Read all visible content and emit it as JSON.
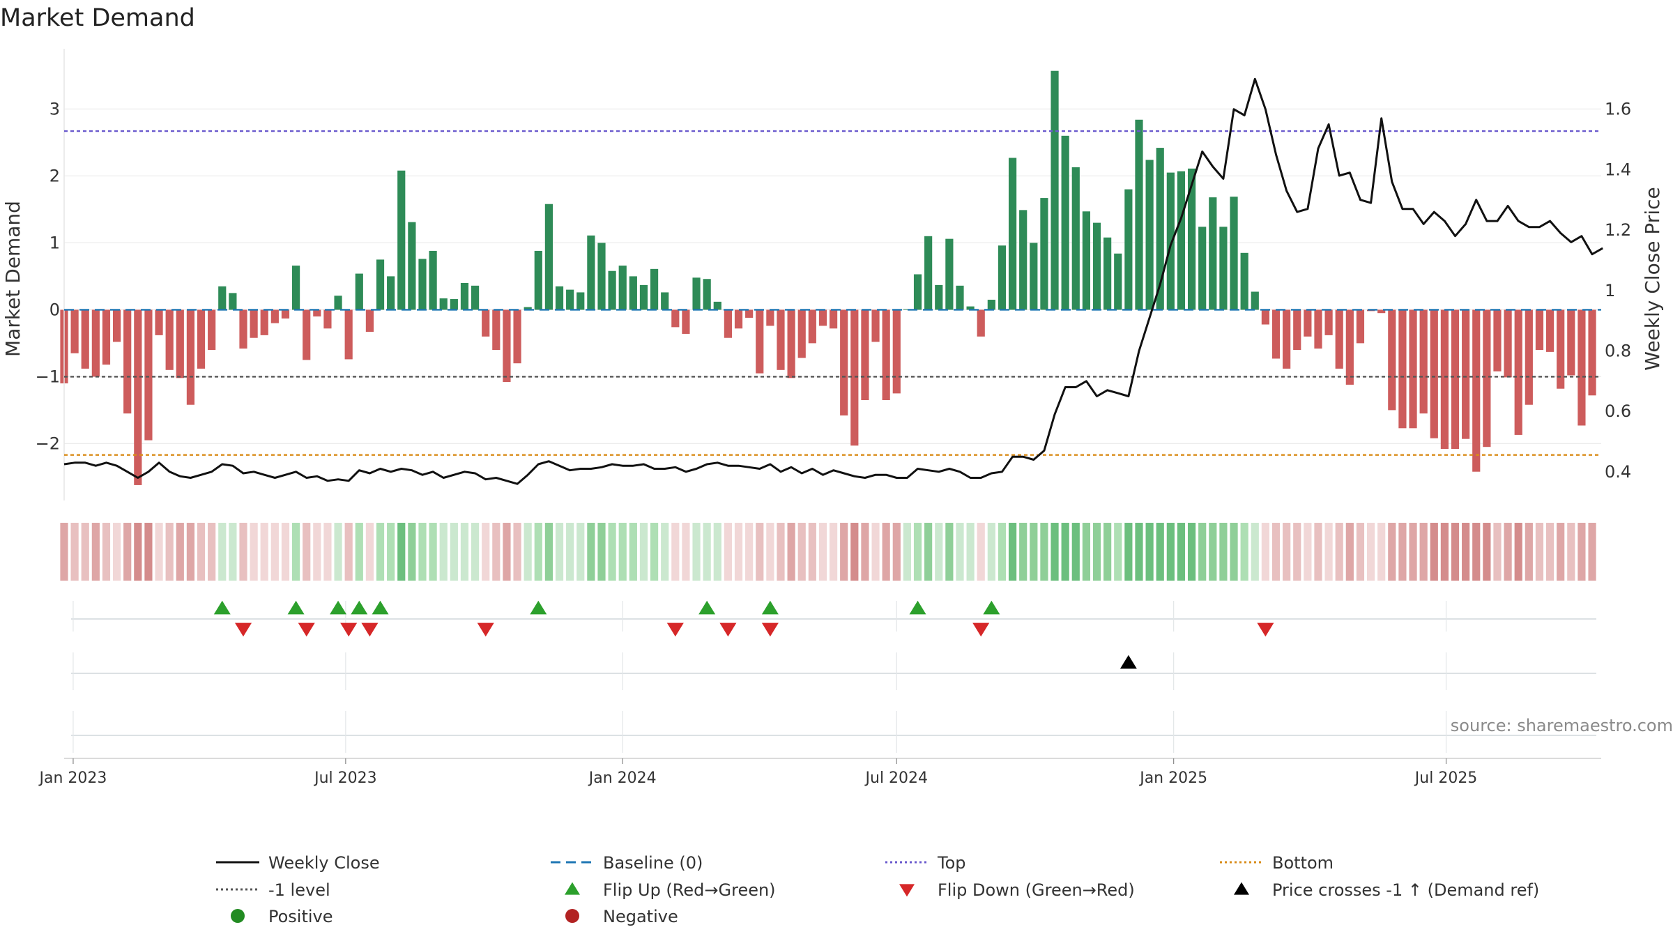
{
  "chart_data": {
    "type": "bar",
    "title": "Market Demand",
    "ylabel": "Market Demand",
    "y2label": "Weekly Close Price",
    "ylim": [
      -2.85,
      3.9
    ],
    "y2lim": [
      0.305,
      1.8
    ],
    "xlim": [
      "2022-12-26",
      "2025-10-12"
    ],
    "yticks": [
      -2,
      -1,
      0,
      1,
      2,
      3
    ],
    "y2ticks": [
      0.4,
      0.6,
      0.8,
      1,
      1.2,
      1.4,
      1.6
    ],
    "x_tick_labels": [
      {
        "date": "2023-01-01",
        "label": "Jan 2023"
      },
      {
        "date": "2023-07-01",
        "label": "Jul 2023"
      },
      {
        "date": "2024-01-01",
        "label": "Jan 2024"
      },
      {
        "date": "2024-07-01",
        "label": "Jul 2024"
      },
      {
        "date": "2025-01-01",
        "label": "Jan 2025"
      },
      {
        "date": "2025-07-01",
        "label": "Jul 2025"
      }
    ],
    "start_week": "2022-12-26",
    "week_step_days": 7,
    "reference_lines": {
      "baseline": 0,
      "top": 2.67,
      "minus_one": -1,
      "bottom": -2.17
    },
    "demand": [
      -1.1,
      -0.65,
      -0.88,
      -1.0,
      -0.82,
      -0.48,
      -1.55,
      -2.62,
      -1.95,
      -0.38,
      -0.9,
      -1.02,
      -1.42,
      -0.88,
      -0.6,
      0.35,
      0.25,
      -0.58,
      -0.42,
      -0.38,
      -0.2,
      -0.13,
      0.66,
      -0.75,
      -0.1,
      -0.28,
      0.21,
      -0.74,
      0.54,
      -0.33,
      0.75,
      0.5,
      2.08,
      1.31,
      0.76,
      0.88,
      0.17,
      0.16,
      0.4,
      0.36,
      -0.4,
      -0.6,
      -1.08,
      -0.8,
      0.04,
      0.88,
      1.58,
      0.35,
      0.3,
      0.26,
      1.11,
      1.0,
      0.58,
      0.66,
      0.5,
      0.37,
      0.61,
      0.26,
      -0.26,
      -0.36,
      0.48,
      0.46,
      0.12,
      -0.42,
      -0.28,
      -0.12,
      -0.95,
      -0.24,
      -0.9,
      -1.02,
      -0.72,
      -0.5,
      -0.24,
      -0.28,
      -1.58,
      -2.03,
      -1.35,
      -0.48,
      -1.35,
      -1.25,
      0.01,
      0.53,
      1.1,
      0.37,
      1.06,
      0.36,
      0.05,
      -0.4,
      0.15,
      0.96,
      2.27,
      1.49,
      1.0,
      1.67,
      3.57,
      2.6,
      2.13,
      1.47,
      1.3,
      1.08,
      0.84,
      1.8,
      2.84,
      2.24,
      2.42,
      2.05,
      2.07,
      2.11,
      1.24,
      1.68,
      1.24,
      1.69,
      0.85,
      0.27,
      -0.22,
      -0.73,
      -0.88,
      -0.6,
      -0.4,
      -0.58,
      -0.38,
      -0.88,
      -1.12,
      -0.5,
      -0.02,
      -0.05,
      -1.5,
      -1.77,
      -1.77,
      -1.55,
      -1.92,
      -2.08,
      -2.08,
      -1.93,
      -2.42,
      -2.05,
      -0.92,
      -1.01,
      -1.87,
      -1.42,
      -0.6,
      -0.63,
      -1.18,
      -0.98,
      -1.73,
      -1.28
    ],
    "close": [
      0.425,
      0.43,
      0.43,
      0.42,
      0.43,
      0.42,
      0.4,
      0.38,
      0.4,
      0.43,
      0.4,
      0.385,
      0.38,
      0.39,
      0.4,
      0.425,
      0.42,
      0.395,
      0.4,
      0.39,
      0.38,
      0.39,
      0.4,
      0.38,
      0.385,
      0.37,
      0.375,
      0.37,
      0.405,
      0.395,
      0.41,
      0.4,
      0.41,
      0.405,
      0.39,
      0.4,
      0.38,
      0.39,
      0.4,
      0.395,
      0.375,
      0.38,
      0.37,
      0.36,
      0.39,
      0.425,
      0.435,
      0.42,
      0.405,
      0.41,
      0.41,
      0.415,
      0.425,
      0.42,
      0.42,
      0.425,
      0.41,
      0.41,
      0.415,
      0.4,
      0.41,
      0.425,
      0.43,
      0.42,
      0.42,
      0.415,
      0.41,
      0.425,
      0.4,
      0.415,
      0.395,
      0.41,
      0.39,
      0.405,
      0.395,
      0.385,
      0.38,
      0.39,
      0.39,
      0.38,
      0.38,
      0.41,
      0.405,
      0.4,
      0.41,
      0.4,
      0.38,
      0.38,
      0.395,
      0.4,
      0.45,
      0.45,
      0.44,
      0.47,
      0.59,
      0.68,
      0.68,
      0.7,
      0.65,
      0.67,
      0.66,
      0.65,
      0.8,
      0.91,
      1.02,
      1.15,
      1.24,
      1.35,
      1.46,
      1.41,
      1.37,
      1.6,
      1.58,
      1.7,
      1.6,
      1.45,
      1.33,
      1.26,
      1.27,
      1.47,
      1.55,
      1.38,
      1.39,
      1.3,
      1.29,
      1.57,
      1.36,
      1.27,
      1.27,
      1.22,
      1.26,
      1.23,
      1.18,
      1.22,
      1.3,
      1.23,
      1.23,
      1.28,
      1.23,
      1.21,
      1.21,
      1.23,
      1.19,
      1.16,
      1.18,
      1.12,
      1.14
    ],
    "strength_colors": {
      "neg": [
        "#f1d7d7",
        "#e8c0c0",
        "#dea6a6",
        "#d48c8c"
      ],
      "pos": [
        "#cbe8cf",
        "#aedfb4",
        "#8fcf98",
        "#6cbf7e"
      ]
    },
    "flip_up_weeks": [
      15,
      22,
      26,
      28,
      30,
      45,
      61,
      67,
      81,
      88
    ],
    "flip_down_weeks": [
      17,
      23,
      27,
      29,
      40,
      58,
      63,
      67,
      87,
      114
    ],
    "price_cross_weeks": [
      101
    ],
    "source_text": "source: sharemaestro.com",
    "legend": [
      {
        "key": "weekly-close",
        "label": "Weekly Close",
        "style": "line",
        "color": "#111111",
        "dash": ""
      },
      {
        "key": "baseline",
        "label": "Baseline (0)",
        "style": "line",
        "color": "#1f77b4",
        "dash": "14,8"
      },
      {
        "key": "top",
        "label": "Top",
        "style": "line",
        "color": "#6a5acd",
        "dash": "3,4"
      },
      {
        "key": "bottom",
        "label": "Bottom",
        "style": "line",
        "color": "#d98c1a",
        "dash": "3,4"
      },
      {
        "key": "minus-one",
        "label": "-1 level",
        "style": "line",
        "color": "#555555",
        "dash": "3,4"
      },
      {
        "key": "flip-up",
        "label": "Flip Up (Red→Green)",
        "style": "tri-up",
        "color": "#2ca02c"
      },
      {
        "key": "flip-down",
        "label": "Flip Down (Green→Red)",
        "style": "tri-down",
        "color": "#d62728"
      },
      {
        "key": "price-cross",
        "label": "Price crosses -1 ↑ (Demand ref)",
        "style": "tri-up",
        "color": "#000000"
      },
      {
        "key": "positive",
        "label": "Positive",
        "style": "dot",
        "color": "#228b22"
      },
      {
        "key": "negative",
        "label": "Negative",
        "style": "dot",
        "color": "#b22222"
      }
    ]
  }
}
